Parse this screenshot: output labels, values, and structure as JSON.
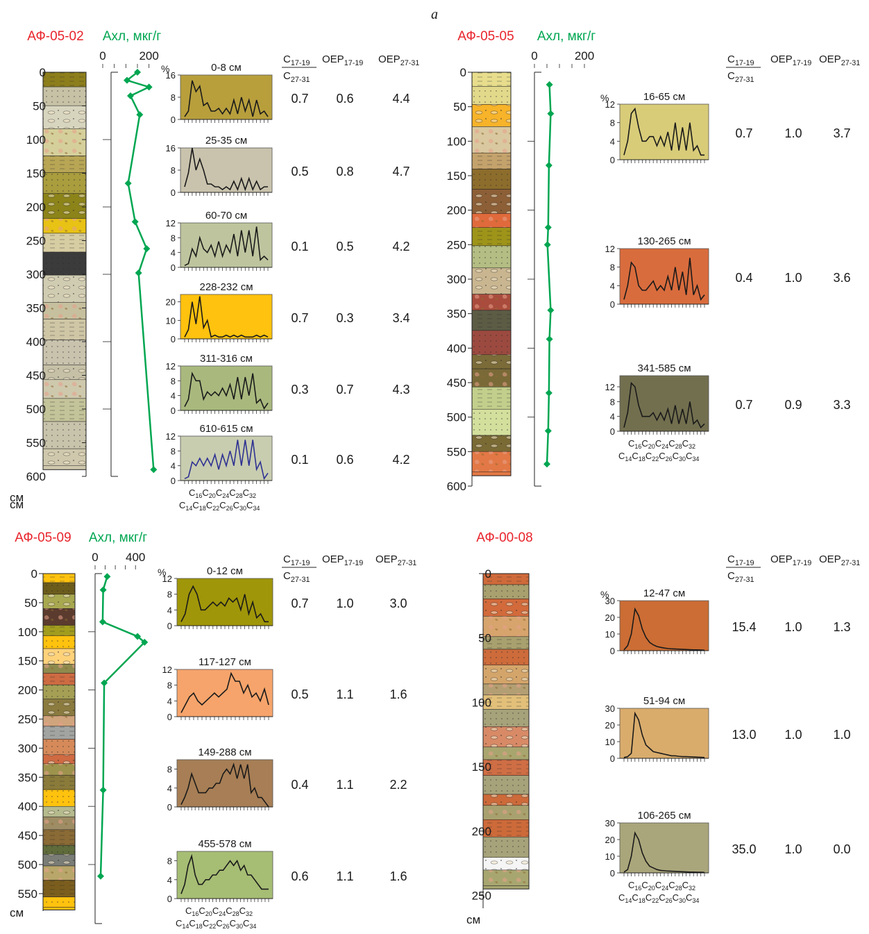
{
  "page_label": "a",
  "depth_unit": "см",
  "percent_label": "%",
  "axl_label": "Ахл, мкг/г",
  "ratio_header": {
    "num": "C",
    "num_sub": "17-19",
    "den": "C",
    "den_sub": "27-31"
  },
  "oep_header_1": {
    "text": "OEP",
    "sub": "17-19"
  },
  "oep_header_2": {
    "text": "OEP",
    "sub": "27-31"
  },
  "x_axis_top": [
    "C",
    "16",
    "C",
    "20",
    "C",
    "24",
    "C",
    "28",
    "C",
    "32"
  ],
  "x_axis_bottom": [
    "C",
    "14",
    "C",
    "18",
    "C",
    "22",
    "C",
    "26",
    "C",
    "30",
    "C",
    "34"
  ],
  "colors": {
    "title": "#e8232b",
    "axl": "#00a651",
    "line": "#1a1a1a",
    "line_alt": "#2e3192"
  },
  "chart_data": [
    {
      "id": "AF-05-02",
      "type": "line",
      "title": "АФ-05-02",
      "depth_ticks": [
        "0",
        "50",
        "100",
        "150",
        "200",
        "250",
        "300",
        "350",
        "400",
        "450",
        "500",
        "550",
        "600"
      ],
      "depth_range": [
        0,
        600
      ],
      "axl_ticks": [
        "0",
        "200"
      ],
      "axl_range": [
        0,
        300
      ],
      "axl_points": [
        [
          150,
          0
        ],
        [
          105,
          12
        ],
        [
          200,
          22
        ],
        [
          120,
          35
        ],
        [
          160,
          63
        ],
        [
          110,
          165
        ],
        [
          140,
          222
        ],
        [
          190,
          262
        ],
        [
          155,
          298
        ],
        [
          220,
          590
        ]
      ],
      "samples": [
        {
          "label": "0-8 см",
          "ymax": 16,
          "yticks": [
            "0",
            "8",
            "16"
          ],
          "fill": "#b89f3c",
          "ratio": "0.7",
          "oep1": "0.6",
          "oep2": "4.4",
          "values": [
            1,
            3,
            14,
            10,
            12,
            5,
            6,
            3,
            3,
            4,
            2,
            4,
            2,
            7,
            2,
            8,
            3,
            7,
            1,
            7,
            2,
            3,
            1
          ]
        },
        {
          "label": "25-35 см",
          "ymax": 16,
          "yticks": [
            "0",
            "8",
            "16"
          ],
          "fill": "#c9c3ad",
          "ratio": "0.5",
          "oep1": "0.8",
          "oep2": "4.7",
          "values": [
            2,
            7,
            16,
            8,
            12,
            8,
            3,
            3,
            2,
            2,
            1,
            2,
            1,
            4,
            1,
            5,
            1,
            5,
            1,
            4,
            1,
            2,
            2
          ]
        },
        {
          "label": "60-70 см",
          "ymax": 12,
          "yticks": [
            "0",
            "4",
            "8",
            "12"
          ],
          "fill": "#bec59e",
          "ratio": "0.1",
          "oep1": "0.5",
          "oep2": "4.2",
          "values": [
            0.5,
            1,
            5,
            3,
            8,
            5,
            4,
            6,
            3,
            7,
            3,
            6,
            4,
            9,
            3,
            10,
            4,
            10,
            3,
            11,
            2,
            3,
            2
          ]
        },
        {
          "label": "228-232 см",
          "ymax": 24,
          "yticks": [
            "0",
            "10",
            "20"
          ],
          "fill": "#ffc20e",
          "ratio": "0.7",
          "oep1": "0.3",
          "oep2": "3.4",
          "values": [
            1,
            5,
            20,
            8,
            23,
            6,
            10,
            1,
            2,
            1,
            1,
            2,
            1,
            2,
            1,
            2,
            1,
            1,
            1,
            2,
            1,
            2,
            1
          ]
        },
        {
          "label": "311-316 см",
          "ymax": 12,
          "yticks": [
            "0",
            "4",
            "8",
            "12"
          ],
          "fill": "#a9b97e",
          "ratio": "0.3",
          "oep1": "0.7",
          "oep2": "4.3",
          "values": [
            1,
            3,
            10,
            8,
            8,
            3,
            5,
            4,
            5,
            4,
            6,
            4,
            7,
            3,
            9,
            3,
            9,
            4,
            10,
            2,
            3,
            0.5,
            2
          ]
        },
        {
          "label": "610-615 см",
          "ymax": 12,
          "yticks": [
            "0",
            "4",
            "8",
            "12"
          ],
          "fill": "#c8cdb0",
          "ratio": "0.1",
          "oep1": "0.6",
          "oep2": "4.2",
          "values": [
            0.5,
            1,
            5,
            4,
            6,
            4,
            6,
            4,
            7,
            3,
            7,
            4,
            8,
            4,
            11,
            4,
            11,
            4,
            11,
            3,
            5,
            0.5,
            2
          ],
          "alt_line": true
        }
      ]
    },
    {
      "id": "AF-05-05",
      "type": "line",
      "title": "АФ-05-05",
      "depth_ticks": [
        "0",
        "50",
        "100",
        "150",
        "200",
        "250",
        "300",
        "350",
        "400",
        "450",
        "500",
        "550",
        "600"
      ],
      "depth_range": [
        0,
        600
      ],
      "axl_ticks": [
        "0",
        "200"
      ],
      "axl_range": [
        0,
        250
      ],
      "axl_points": [
        [
          60,
          18
        ],
        [
          65,
          60
        ],
        [
          58,
          135
        ],
        [
          55,
          225
        ],
        [
          52,
          250
        ],
        [
          65,
          345
        ],
        [
          60,
          387
        ],
        [
          58,
          465
        ],
        [
          55,
          520
        ],
        [
          50,
          568
        ]
      ],
      "samples": [
        {
          "label": "16-65 см",
          "ymax": 12,
          "yticks": [
            "0",
            "4",
            "8",
            "12"
          ],
          "fill": "#d8cc79",
          "ratio": "0.7",
          "oep1": "1.0",
          "oep2": "3.7",
          "values": [
            1,
            4,
            10,
            11,
            7,
            4,
            4,
            5,
            5,
            3,
            5,
            3,
            6,
            2,
            8,
            2,
            7,
            2,
            8,
            2,
            3,
            1,
            1
          ]
        },
        {
          "label": "130-265 см",
          "ymax": 12,
          "yticks": [
            "0",
            "4",
            "8",
            "12"
          ],
          "fill": "#d96c3d",
          "ratio": "0.4",
          "oep1": "1.0",
          "oep2": "3.6",
          "values": [
            1,
            4,
            9,
            8,
            4,
            3,
            3,
            4,
            5,
            3,
            4,
            3,
            6,
            3,
            8,
            3,
            7,
            2,
            10,
            2,
            4,
            1,
            2
          ]
        },
        {
          "label": "341-585 см",
          "ymax": 15,
          "yticks": [
            "0",
            "4",
            "8",
            "12"
          ],
          "fill": "#726f4f",
          "ratio": "0.7",
          "oep1": "0.9",
          "oep2": "3.3",
          "values": [
            1,
            5,
            13,
            12,
            7,
            4,
            4,
            4,
            5,
            3,
            5,
            3,
            6,
            2,
            7,
            2,
            6,
            2,
            8,
            2,
            3,
            1,
            2
          ]
        }
      ]
    },
    {
      "id": "AF-05-09",
      "type": "line",
      "title": "АФ-05-09",
      "depth_ticks": [
        "0",
        "50",
        "100",
        "150",
        "200",
        "250",
        "300",
        "350",
        "400",
        "450",
        "500",
        "550"
      ],
      "depth_range": [
        0,
        580
      ],
      "axl_ticks": [
        "0",
        "400"
      ],
      "axl_range": [
        0,
        550
      ],
      "axl_points": [
        [
          120,
          5
        ],
        [
          80,
          28
        ],
        [
          75,
          83
        ],
        [
          420,
          108
        ],
        [
          490,
          118
        ],
        [
          90,
          188
        ],
        [
          80,
          372
        ],
        [
          55,
          520
        ]
      ],
      "samples": [
        {
          "label": "0-12 см",
          "ymax": 12,
          "yticks": [
            "0",
            "4",
            "8",
            "12"
          ],
          "fill": "#a09609",
          "ratio": "0.7",
          "oep1": "1.0",
          "oep2": "3.0",
          "values": [
            1,
            3,
            8,
            10,
            8,
            4,
            4,
            5,
            6,
            5,
            6,
            5,
            7,
            6,
            7,
            4,
            8,
            3,
            6,
            2,
            3,
            1,
            1
          ]
        },
        {
          "label": "117-127 см",
          "ymax": 12,
          "yticks": [
            "0",
            "4",
            "8",
            "12"
          ],
          "fill": "#f6a46b",
          "ratio": "0.5",
          "oep1": "1.1",
          "oep2": "1.6",
          "values": [
            1,
            3,
            5,
            6,
            4,
            3,
            4,
            5,
            6,
            5,
            6,
            7,
            11,
            9,
            9,
            6,
            8,
            5,
            6,
            4,
            7,
            3
          ]
        },
        {
          "label": "149-288 см",
          "ymax": 10,
          "yticks": [
            "0",
            "4",
            "8"
          ],
          "fill": "#a77e55",
          "ratio": "0.4",
          "oep1": "1.1",
          "oep2": "2.2",
          "values": [
            0.5,
            2,
            4,
            7,
            5,
            3,
            3,
            3,
            4,
            4,
            5,
            5,
            7,
            8,
            7,
            9,
            6,
            9,
            6,
            9,
            3,
            4,
            2,
            2,
            1,
            0
          ]
        },
        {
          "label": "455-578 см",
          "ymax": 10,
          "yticks": [
            "0",
            "4",
            "8"
          ],
          "fill": "#a6bd74",
          "ratio": "0.6",
          "oep1": "1.1",
          "oep2": "1.6",
          "values": [
            1,
            3,
            7,
            9,
            5,
            3,
            3,
            4,
            4,
            5,
            5,
            6,
            6,
            7,
            8,
            7,
            8,
            6,
            7,
            5,
            5,
            4,
            3,
            2,
            2,
            2
          ]
        }
      ]
    },
    {
      "id": "AF-00-08",
      "type": "line",
      "title": "АФ-00-08",
      "depth_ticks": [
        "0",
        "50",
        "100",
        "150",
        "200",
        "250"
      ],
      "depth_range": [
        0,
        260
      ],
      "samples": [
        {
          "label": "12-47 см",
          "ymax": 30,
          "yticks": [
            "0",
            "10",
            "20",
            "30"
          ],
          "fill": "#cb6d34",
          "ratio": "15.4",
          "oep1": "1.0",
          "oep2": "1.3",
          "values": [
            0.5,
            3,
            10,
            25,
            21,
            13,
            8,
            5,
            3.5,
            2.5,
            2,
            1.6,
            1.3,
            1.1,
            1,
            0.9,
            0.8,
            0.7,
            0.6,
            0.5,
            0.5,
            0.4,
            0.3
          ]
        },
        {
          "label": "51-94 см",
          "ymax": 30,
          "yticks": [
            "0",
            "10",
            "20",
            "30"
          ],
          "fill": "#d9ac6c",
          "ratio": "13.0",
          "oep1": "1.0",
          "oep2": "1.0",
          "values": [
            0.5,
            1,
            3,
            27,
            23,
            14,
            8,
            6,
            4,
            3.5,
            3,
            2.5,
            2,
            1.5,
            1.5,
            1.2,
            1,
            1,
            0.9,
            0.8,
            0.7,
            0.6,
            0.5
          ]
        },
        {
          "label": "106-265 см",
          "ymax": 30,
          "yticks": [
            "0",
            "10",
            "20",
            "30"
          ],
          "fill": "#aaa67b",
          "ratio": "35.0",
          "oep1": "1.0",
          "oep2": "0.0",
          "values": [
            0.5,
            2,
            10,
            24,
            20,
            12,
            7,
            4,
            3,
            2,
            1.5,
            1.3,
            1.1,
            1,
            0.9,
            0.8,
            0.7,
            0.6,
            0.5,
            0.5,
            0.4,
            0.4,
            0.3
          ]
        }
      ]
    }
  ]
}
